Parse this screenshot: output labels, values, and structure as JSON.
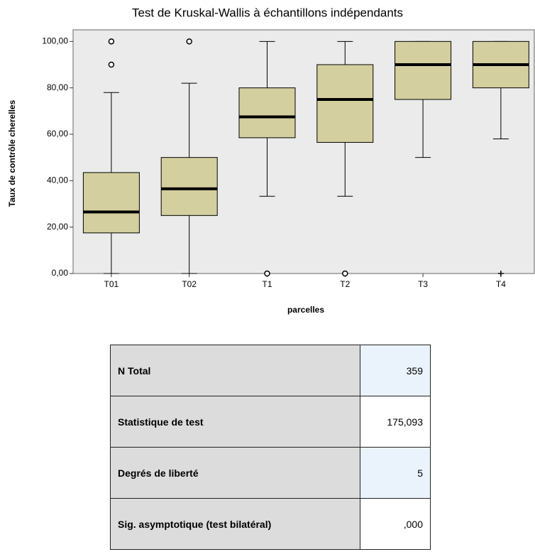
{
  "chart_data": {
    "type": "box",
    "title": "Test de Kruskal-Wallis à échantillons indépendants",
    "xlabel": "parcelles",
    "ylabel": "Taux de contrôle cherelles",
    "categories": [
      "T01",
      "T02",
      "T1",
      "T2",
      "T3",
      "T4"
    ],
    "boxes": [
      {
        "whisker_low": 0,
        "q1": 17.5,
        "median": 26.5,
        "q3": 43.5,
        "whisker_high": 78,
        "outliers": [
          90,
          100
        ]
      },
      {
        "whisker_low": 0,
        "q1": 25,
        "median": 36.5,
        "q3": 50,
        "whisker_high": 82,
        "outliers": [
          100
        ]
      },
      {
        "whisker_low": 33.3,
        "q1": 58.5,
        "median": 67.5,
        "q3": 80,
        "whisker_high": 100,
        "outliers": [
          0
        ]
      },
      {
        "whisker_low": 33.3,
        "q1": 56.5,
        "median": 75,
        "q3": 90,
        "whisker_high": 100,
        "outliers": [
          0
        ]
      },
      {
        "whisker_low": 50,
        "q1": 75,
        "median": 90,
        "q3": 100,
        "whisker_high": 100
      },
      {
        "whisker_low": 58,
        "q1": 80,
        "median": 90,
        "q3": 100,
        "whisker_high": 100,
        "extremes": [
          0
        ]
      }
    ],
    "color": "#d4cf9f",
    "ylim": [
      0,
      105
    ],
    "yticks": [
      {
        "value": 0,
        "label": "0,00"
      },
      {
        "value": 20,
        "label": "20,00"
      },
      {
        "value": 40,
        "label": "40,00"
      },
      {
        "value": 60,
        "label": "60,00"
      },
      {
        "value": 80,
        "label": "80,00"
      },
      {
        "value": 100,
        "label": "100,00"
      }
    ]
  },
  "table": {
    "rows": [
      [
        "N Total",
        "359"
      ],
      [
        "Statistique de test",
        "175,093"
      ],
      [
        "Degrés de liberté",
        "5"
      ],
      [
        "Sig. asymptotique (test bilatéral)",
        ",000"
      ]
    ]
  }
}
